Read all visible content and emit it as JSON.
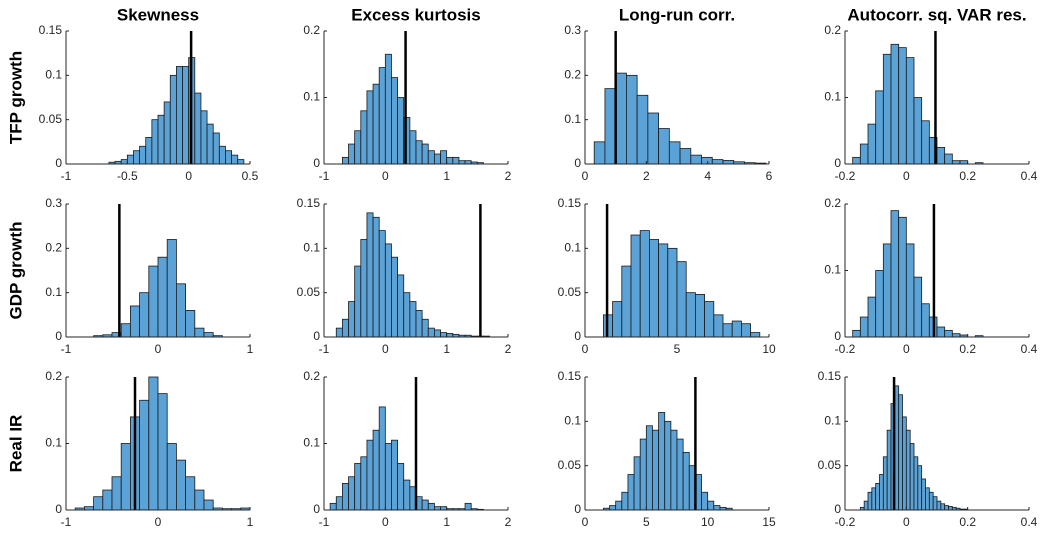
{
  "chart_data": [
    {
      "type": "histogram",
      "title": "Skewness",
      "ylabel": "TFP growth",
      "color": "#5ba2d6",
      "line_color": "#000000",
      "bins": [
        -0.65,
        -0.6,
        -0.55,
        -0.5,
        -0.45,
        -0.4,
        -0.35,
        -0.3,
        -0.25,
        -0.2,
        -0.15,
        -0.1,
        -0.05,
        0,
        0.05,
        0.1,
        0.15,
        0.2,
        0.25,
        0.3,
        0.35,
        0.4,
        0.45
      ],
      "values": [
        0.002,
        0.003,
        0.005,
        0.01,
        0.015,
        0.02,
        0.03,
        0.05,
        0.055,
        0.07,
        0.1,
        0.11,
        0.11,
        0.12,
        0.08,
        0.06,
        0.045,
        0.035,
        0.02,
        0.015,
        0.01,
        0.005
      ],
      "marker_value": 0.02,
      "xlim": [
        -1,
        0.5
      ],
      "ylim": [
        0,
        0.15
      ],
      "xticks": [
        -1,
        -0.5,
        0,
        0.5
      ],
      "yticks": [
        0,
        0.05,
        0.1,
        0.15
      ]
    },
    {
      "type": "histogram",
      "title": "Excess kurtosis",
      "color": "#5ba2d6",
      "line_color": "#000000",
      "bins": [
        -0.7,
        -0.6,
        -0.5,
        -0.4,
        -0.3,
        -0.2,
        -0.1,
        0,
        0.1,
        0.2,
        0.3,
        0.4,
        0.5,
        0.6,
        0.7,
        0.8,
        0.9,
        1,
        1.1,
        1.2,
        1.3,
        1.4,
        1.5,
        1.6
      ],
      "values": [
        0.01,
        0.03,
        0.05,
        0.08,
        0.11,
        0.12,
        0.145,
        0.165,
        0.13,
        0.1,
        0.07,
        0.05,
        0.035,
        0.03,
        0.02,
        0.015,
        0.02,
        0.01,
        0.01,
        0.005,
        0.005,
        0.003,
        0.002
      ],
      "marker_value": 0.33,
      "xlim": [
        -1,
        2
      ],
      "ylim": [
        0,
        0.2
      ],
      "xticks": [
        -1,
        0,
        1,
        2
      ],
      "yticks": [
        0,
        0.1,
        0.2
      ]
    },
    {
      "type": "histogram",
      "title": "Long-run corr.",
      "color": "#5ba2d6",
      "line_color": "#000000",
      "bins": [
        0.3,
        0.65,
        1,
        1.35,
        1.7,
        2.05,
        2.4,
        2.75,
        3.1,
        3.45,
        3.8,
        4.15,
        4.5,
        4.85,
        5.2,
        5.55,
        5.9
      ],
      "values": [
        0.05,
        0.17,
        0.205,
        0.2,
        0.155,
        0.115,
        0.08,
        0.05,
        0.035,
        0.02,
        0.015,
        0.01,
        0.008,
        0.005,
        0.003,
        0.002
      ],
      "marker_value": 1.0,
      "xlim": [
        0,
        6
      ],
      "ylim": [
        0,
        0.3
      ],
      "xticks": [
        0,
        2,
        4,
        6
      ],
      "yticks": [
        0,
        0.1,
        0.2,
        0.3
      ]
    },
    {
      "type": "histogram",
      "title": "Autocorr. sq. VAR res.",
      "color": "#5ba2d6",
      "line_color": "#000000",
      "bins": [
        -0.175,
        -0.15,
        -0.125,
        -0.1,
        -0.075,
        -0.05,
        -0.025,
        0,
        0.025,
        0.05,
        0.075,
        0.1,
        0.125,
        0.15,
        0.175,
        0.2,
        0.225,
        0.25
      ],
      "values": [
        0.01,
        0.03,
        0.06,
        0.11,
        0.165,
        0.18,
        0.175,
        0.16,
        0.1,
        0.065,
        0.04,
        0.025,
        0.015,
        0.005,
        0.005,
        0,
        0.002
      ],
      "marker_value": 0.095,
      "xlim": [
        -0.2,
        0.4
      ],
      "ylim": [
        0,
        0.2
      ],
      "xticks": [
        -0.2,
        0,
        0.2,
        0.4
      ],
      "yticks": [
        0,
        0.1,
        0.2
      ]
    },
    {
      "type": "histogram",
      "ylabel": "GDP growth",
      "color": "#5ba2d6",
      "line_color": "#000000",
      "bins": [
        -0.7,
        -0.6,
        -0.5,
        -0.4,
        -0.3,
        -0.2,
        -0.1,
        0,
        0.1,
        0.2,
        0.3,
        0.4,
        0.5,
        0.6,
        0.7
      ],
      "values": [
        0.003,
        0.005,
        0.01,
        0.03,
        0.07,
        0.1,
        0.16,
        0.18,
        0.22,
        0.12,
        0.06,
        0.02,
        0.01,
        0.003
      ],
      "marker_value": -0.42,
      "xlim": [
        -1,
        1
      ],
      "ylim": [
        0,
        0.3
      ],
      "xticks": [
        -1,
        0,
        1
      ],
      "yticks": [
        0,
        0.1,
        0.2,
        0.3
      ]
    },
    {
      "type": "histogram",
      "color": "#5ba2d6",
      "line_color": "#000000",
      "bins": [
        -0.8,
        -0.7,
        -0.6,
        -0.5,
        -0.4,
        -0.3,
        -0.2,
        -0.1,
        0,
        0.1,
        0.2,
        0.3,
        0.4,
        0.5,
        0.6,
        0.7,
        0.8,
        0.9,
        1,
        1.1,
        1.2,
        1.3,
        1.4,
        1.5,
        1.6,
        1.7
      ],
      "values": [
        0.01,
        0.02,
        0.04,
        0.08,
        0.11,
        0.14,
        0.135,
        0.12,
        0.105,
        0.09,
        0.07,
        0.05,
        0.04,
        0.03,
        0.02,
        0.01,
        0.008,
        0.005,
        0.004,
        0.003,
        0.002,
        0.002,
        0.001,
        0.001,
        0.001
      ],
      "marker_value": 1.55,
      "xlim": [
        -1,
        2
      ],
      "ylim": [
        0,
        0.15
      ],
      "xticks": [
        -1,
        0,
        1,
        2
      ],
      "yticks": [
        0,
        0.05,
        0.1,
        0.15
      ]
    },
    {
      "type": "histogram",
      "color": "#5ba2d6",
      "line_color": "#000000",
      "bins": [
        1,
        1.5,
        2,
        2.5,
        3,
        3.5,
        4,
        4.5,
        5,
        5.5,
        6,
        6.5,
        7,
        7.5,
        8,
        8.5,
        9,
        9.5
      ],
      "values": [
        0.025,
        0.04,
        0.08,
        0.115,
        0.12,
        0.11,
        0.105,
        0.1,
        0.085,
        0.05,
        0.048,
        0.04,
        0.025,
        0.015,
        0.018,
        0.015,
        0.005
      ],
      "marker_value": 1.2,
      "xlim": [
        0,
        10
      ],
      "ylim": [
        0,
        0.15
      ],
      "xticks": [
        0,
        5,
        10
      ],
      "yticks": [
        0,
        0.05,
        0.1,
        0.15
      ]
    },
    {
      "type": "histogram",
      "color": "#5ba2d6",
      "line_color": "#000000",
      "bins": [
        -0.175,
        -0.15,
        -0.125,
        -0.1,
        -0.075,
        -0.05,
        -0.025,
        0,
        0.025,
        0.05,
        0.075,
        0.1,
        0.125,
        0.15,
        0.175,
        0.2,
        0.225,
        0.25
      ],
      "values": [
        0.01,
        0.03,
        0.06,
        0.1,
        0.14,
        0.19,
        0.18,
        0.14,
        0.09,
        0.05,
        0.03,
        0.015,
        0.01,
        0.005,
        0.003,
        0,
        0.002
      ],
      "marker_value": 0.09,
      "xlim": [
        -0.2,
        0.4
      ],
      "ylim": [
        0,
        0.2
      ],
      "xticks": [
        -0.2,
        0,
        0.2,
        0.4
      ],
      "yticks": [
        0,
        0.1,
        0.2
      ]
    },
    {
      "type": "histogram",
      "ylabel": "Real IR",
      "color": "#5ba2d6",
      "line_color": "#000000",
      "bins": [
        -0.9,
        -0.8,
        -0.7,
        -0.6,
        -0.5,
        -0.4,
        -0.3,
        -0.2,
        -0.1,
        0,
        0.1,
        0.2,
        0.3,
        0.4,
        0.5,
        0.6,
        0.7,
        0.8,
        0.9,
        1
      ],
      "values": [
        0.003,
        0.005,
        0.02,
        0.03,
        0.05,
        0.1,
        0.14,
        0.165,
        0.2,
        0.175,
        0.1,
        0.075,
        0.05,
        0.03,
        0.015,
        0.003,
        0.002,
        0.002,
        0.003
      ],
      "marker_value": -0.25,
      "xlim": [
        -1,
        1
      ],
      "ylim": [
        0,
        0.2
      ],
      "xticks": [
        -1,
        0,
        1
      ],
      "yticks": [
        0,
        0.1,
        0.2
      ]
    },
    {
      "type": "histogram",
      "color": "#5ba2d6",
      "line_color": "#000000",
      "bins": [
        -0.9,
        -0.8,
        -0.7,
        -0.6,
        -0.5,
        -0.4,
        -0.3,
        -0.2,
        -0.1,
        0,
        0.1,
        0.2,
        0.3,
        0.4,
        0.5,
        0.6,
        0.7,
        0.8,
        0.9,
        1,
        1.1,
        1.2,
        1.3,
        1.4,
        1.5,
        1.6
      ],
      "values": [
        0.01,
        0.02,
        0.04,
        0.05,
        0.07,
        0.08,
        0.105,
        0.12,
        0.155,
        0.1,
        0.105,
        0.07,
        0.045,
        0.035,
        0.02,
        0.015,
        0.01,
        0.005,
        0.005,
        0.002,
        0.002,
        0.002,
        0.01,
        0.002,
        0.001
      ],
      "marker_value": 0.5,
      "xlim": [
        -1,
        2
      ],
      "ylim": [
        0,
        0.2
      ],
      "xticks": [
        -1,
        0,
        1,
        2
      ],
      "yticks": [
        0,
        0.1,
        0.2
      ]
    },
    {
      "type": "histogram",
      "color": "#5ba2d6",
      "line_color": "#000000",
      "bins": [
        1.5,
        2,
        2.5,
        3,
        3.5,
        4,
        4.5,
        5,
        5.5,
        6,
        6.5,
        7,
        7.5,
        8,
        8.5,
        9,
        9.5,
        10,
        10.5,
        11,
        11.5,
        12
      ],
      "values": [
        0.002,
        0.005,
        0.01,
        0.02,
        0.04,
        0.06,
        0.08,
        0.095,
        0.09,
        0.11,
        0.1,
        0.09,
        0.08,
        0.065,
        0.05,
        0.04,
        0.02,
        0.01,
        0.005,
        0.003,
        0.002
      ],
      "marker_value": 9,
      "xlim": [
        0,
        15
      ],
      "ylim": [
        0,
        0.15
      ],
      "xticks": [
        0,
        5,
        10,
        15
      ],
      "yticks": [
        0,
        0.05,
        0.1,
        0.15
      ]
    },
    {
      "type": "histogram",
      "color": "#5ba2d6",
      "line_color": "#000000",
      "bins": [
        -0.15,
        -0.1375,
        -0.125,
        -0.1125,
        -0.1,
        -0.0875,
        -0.075,
        -0.0625,
        -0.05,
        -0.0375,
        -0.025,
        -0.0125,
        0,
        0.0125,
        0.025,
        0.0375,
        0.05,
        0.0625,
        0.075,
        0.0875,
        0.1,
        0.1125,
        0.125,
        0.1375,
        0.15,
        0.1625,
        0.175,
        0.1875,
        0.2
      ],
      "values": [
        0.003,
        0.01,
        0.02,
        0.025,
        0.03,
        0.04,
        0.06,
        0.09,
        0.12,
        0.14,
        0.13,
        0.105,
        0.09,
        0.075,
        0.06,
        0.05,
        0.035,
        0.025,
        0.02,
        0.015,
        0.01,
        0.007,
        0.005,
        0.004,
        0.003,
        0.002,
        0.001,
        0.001
      ],
      "marker_value": -0.04,
      "xlim": [
        -0.2,
        0.4
      ],
      "ylim": [
        0,
        0.15
      ],
      "xticks": [
        -0.2,
        0,
        0.2,
        0.4
      ],
      "yticks": [
        0,
        0.05,
        0.1,
        0.15
      ]
    }
  ]
}
